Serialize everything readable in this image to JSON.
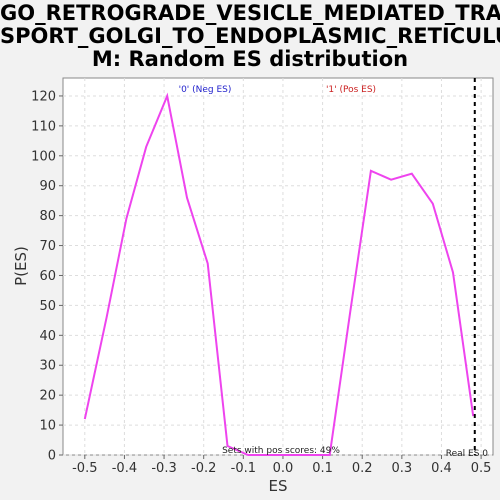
{
  "chart_data": {
    "type": "line",
    "title": "GO_RETROGRADE_VESICLE_MEDIATED_TRANSPORT_GOLGI_TO_ENDOPLASMIC_RETICULUM: Random ES distribution",
    "title_lines": [
      "GO_RETROGRADE_VESICLE_MEDIATED_TRAN",
      "SPORT_GOLGI_TO_ENDOPLASMIC_RETICULU",
      "M: Random ES distribution"
    ],
    "xlabel": "ES",
    "ylabel": "P(ES)",
    "xlim": [
      -0.555,
      0.53
    ],
    "ylim": [
      0,
      126
    ],
    "xticks": [
      "-0.5",
      "-0.4",
      "-0.3",
      "-0.2",
      "-0.1",
      "0.0",
      "0.1",
      "0.2",
      "0.3",
      "0.4",
      "0.5"
    ],
    "yticks": [
      "0",
      "10",
      "20",
      "30",
      "40",
      "50",
      "60",
      "70",
      "80",
      "90",
      "100",
      "110",
      "120"
    ],
    "grid": true,
    "series": [
      {
        "color": "#ee44ee",
        "x": [
          -0.5,
          -0.445,
          -0.395,
          -0.345,
          -0.292,
          -0.242,
          -0.19,
          -0.14,
          -0.088,
          -0.037,
          0.015,
          0.066,
          0.118,
          0.17,
          0.222,
          0.273,
          0.325,
          0.378,
          0.429,
          0.48
        ],
        "y": [
          12,
          46,
          79,
          103,
          120,
          86,
          64,
          3,
          0,
          0,
          0,
          0,
          0,
          48,
          95,
          92,
          94,
          84,
          61,
          13
        ]
      }
    ],
    "neg_label": "'0' (Neg ES)",
    "neg_color": "#2222cc",
    "pos_label": "'1' (Pos ES)",
    "pos_color": "#cc2222",
    "sets_text": "Sets with pos scores: 49%",
    "real_es_label": "Real ES 0",
    "real_es_value": 0.484
  }
}
